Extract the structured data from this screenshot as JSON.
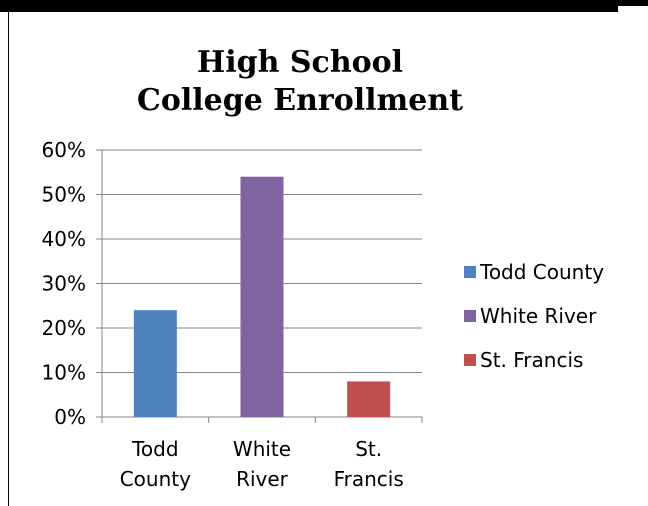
{
  "chart_data": {
    "type": "bar",
    "title": [
      "High School",
      "College Enrollment"
    ],
    "categories": [
      [
        "Todd",
        "County"
      ],
      [
        "White",
        "River"
      ],
      [
        "St.",
        "Francis"
      ]
    ],
    "values": [
      24,
      54,
      8
    ],
    "colors": [
      "#4f81bd",
      "#8064a2",
      "#c0504d"
    ],
    "legend": [
      "Todd County",
      "White River",
      "St. Francis"
    ],
    "legend_position": "right",
    "ylim": [
      0,
      60
    ],
    "yticks": [
      0,
      10,
      20,
      30,
      40,
      50,
      60
    ],
    "ytick_labels": [
      "0%",
      "10%",
      "20%",
      "30%",
      "40%",
      "50%",
      "60%"
    ],
    "grid": true
  }
}
